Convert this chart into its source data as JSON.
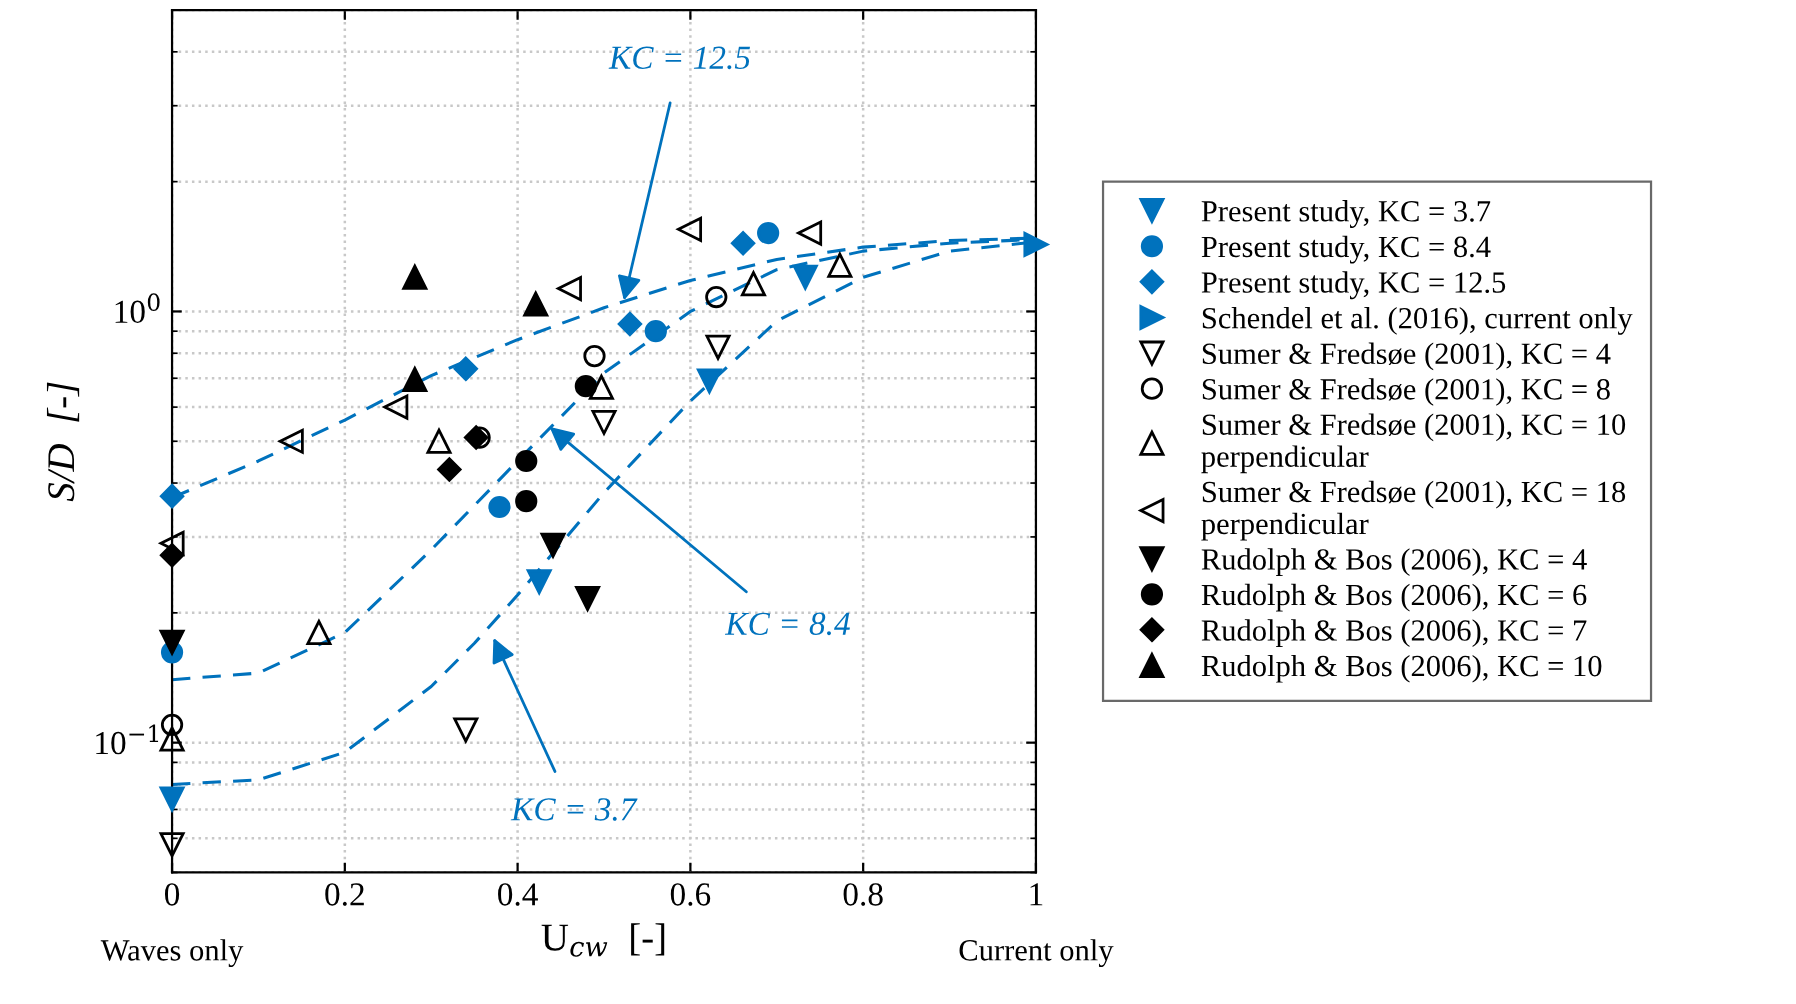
{
  "chart_data": {
    "type": "scatter",
    "xlabel": "U$_{cw}$  [-]",
    "ylabel": "S/D  [-]",
    "xlim": [
      0,
      1
    ],
    "xticks": [
      0,
      0.2,
      0.4,
      0.6,
      0.8,
      1
    ],
    "ylim": [
      0.05,
      5
    ],
    "yticks": [
      {
        "value": 0.1,
        "label": "10$^{−1}$"
      },
      {
        "value": 1,
        "label": "10$^{0}$"
      }
    ],
    "log": "y",
    "grid": true,
    "legend": "right",
    "annotations": [
      "Waves only",
      "Current only",
      {
        "text": "KC = 12.5",
        "x": 0.523,
        "y": 1.06
      },
      {
        "text": "KC = 8.4",
        "x": 0.437,
        "y": 0.54
      },
      {
        "text": "KC = 3.7",
        "x": 0.372,
        "y": 0.175
      }
    ],
    "series": [
      {
        "name": "Present study, KC = 3.7",
        "marker": "triangle_down",
        "color": "#0072bd",
        "x": [
          0,
          0.425,
          0.622,
          0.733
        ],
        "values": [
          0.074,
          0.236,
          0.69,
          1.2
        ]
      },
      {
        "name": "Present study, KC = 8.4",
        "marker": "circle",
        "color": "#0072bd",
        "x": [
          0,
          0.379,
          0.56,
          0.69
        ],
        "values": [
          0.162,
          0.352,
          0.9,
          1.52
        ]
      },
      {
        "name": "Present study, KC = 12.5",
        "marker": "diamond",
        "color": "#0072bd",
        "x": [
          0,
          0.34,
          0.53,
          0.661
        ],
        "values": [
          0.373,
          0.736,
          0.935,
          1.44
        ]
      },
      {
        "name": "Schendel et al. (2016), current only",
        "marker": "triangle_right",
        "color": "#0072bd",
        "x": [
          1
        ],
        "values": [
          1.43
        ]
      },
      {
        "name": "Sumer & Fredsøe (2001), KC = 4",
        "marker": "triangle_down_open",
        "color": "#000000",
        "x": [
          0,
          0.34,
          0.5,
          0.632
        ],
        "values": [
          0.058,
          0.107,
          0.553,
          0.826
        ]
      },
      {
        "name": "Sumer & Fredsøe (2001), KC = 8",
        "marker": "circle_open",
        "color": "#000000",
        "x": [
          0,
          0.356,
          0.489,
          0.63
        ],
        "values": [
          0.11,
          0.51,
          0.788,
          1.08
        ]
      },
      {
        "name": "Sumer & Fredsøe (2001), KC = 10\nperpendicular",
        "marker": "triangle_open",
        "color": "#000000",
        "x": [
          0,
          0.17,
          0.309,
          0.497,
          0.673,
          0.773
        ],
        "values": [
          0.102,
          0.18,
          0.5,
          0.667,
          1.16,
          1.28
        ]
      },
      {
        "name": "Sumer & Fredsøe (2001), KC = 18\nperpendicular",
        "marker": "triangle_left_open",
        "color": "#000000",
        "x": [
          0,
          0.138,
          0.259,
          0.46,
          0.599,
          0.738
        ],
        "values": [
          0.29,
          0.5,
          0.6,
          1.13,
          1.55,
          1.52
        ]
      },
      {
        "name": "Rudolph & Bos (2006), KC = 4",
        "marker": "triangle_down",
        "color": "#000000",
        "x": [
          0,
          0.441,
          0.481
        ],
        "values": [
          0.171,
          0.287,
          0.216
        ]
      },
      {
        "name": "Rudolph & Bos (2006), KC = 6",
        "marker": "circle",
        "color": "#000000",
        "x": [
          0.41,
          0.41,
          0.479
        ],
        "values": [
          0.363,
          0.45,
          0.671
        ]
      },
      {
        "name": "Rudolph & Bos (2006), KC = 7",
        "marker": "diamond",
        "color": "#000000",
        "x": [
          0,
          0.321,
          0.352
        ],
        "values": [
          0.272,
          0.43,
          0.51
        ]
      },
      {
        "name": "Rudolph & Bos (2006), KC = 10",
        "marker": "triangle",
        "color": "#000000",
        "x": [
          0.281,
          0.281,
          0.421
        ],
        "values": [
          1.2,
          0.695,
          1.04
        ]
      },
      {
        "type": "line",
        "line_style": "dashed",
        "marker": "none",
        "color": "#0072bd",
        "x": [
          0,
          0.1,
          0.2,
          0.3,
          0.35,
          0.4,
          0.5,
          0.6,
          0.7,
          0.8,
          0.9,
          1
        ],
        "values": [
          0.08,
          0.082,
          0.095,
          0.135,
          0.17,
          0.22,
          0.38,
          0.62,
          0.95,
          1.2,
          1.38,
          1.45
        ]
      },
      {
        "type": "line",
        "line_style": "dashed",
        "marker": "none",
        "color": "#0072bd",
        "x": [
          0,
          0.1,
          0.2,
          0.3,
          0.4,
          0.5,
          0.6,
          0.7,
          0.8,
          0.9,
          1
        ],
        "values": [
          0.14,
          0.145,
          0.18,
          0.28,
          0.45,
          0.72,
          1.0,
          1.25,
          1.38,
          1.44,
          1.47
        ]
      },
      {
        "type": "line",
        "line_style": "dashed",
        "marker": "none",
        "color": "#0072bd",
        "x": [
          0,
          0.1,
          0.2,
          0.3,
          0.4,
          0.5,
          0.6,
          0.7,
          0.8,
          0.9,
          1
        ],
        "values": [
          0.37,
          0.45,
          0.56,
          0.71,
          0.86,
          1.02,
          1.18,
          1.32,
          1.41,
          1.46,
          1.48
        ]
      }
    ]
  }
}
